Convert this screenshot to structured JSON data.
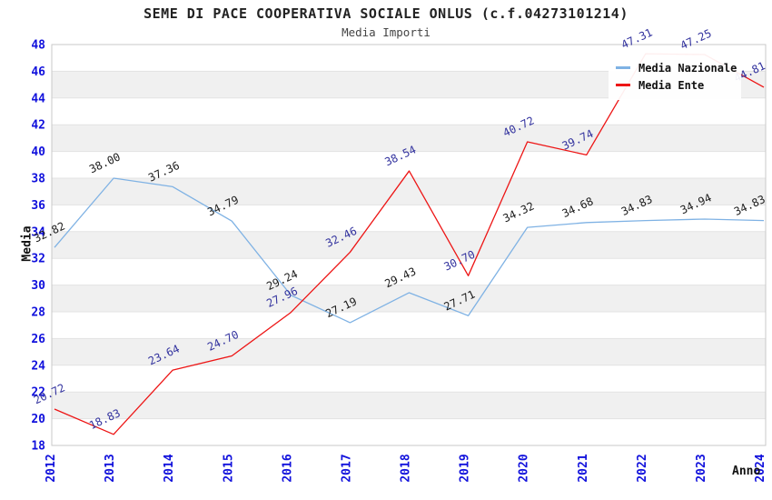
{
  "header": {
    "title": "SEME DI PACE COOPERATIVA SOCIALE ONLUS (c.f.04273101214)",
    "subtitle": "Media Importi"
  },
  "chart_data": {
    "type": "line",
    "title": "SEME DI PACE COOPERATIVA SOCIALE ONLUS (c.f.04273101214)",
    "subtitle": "Media Importi",
    "xlabel": "Anno",
    "ylabel": "Media",
    "categories": [
      "2012",
      "2013",
      "2014",
      "2015",
      "2016",
      "2017",
      "2018",
      "2019",
      "2020",
      "2021",
      "2022",
      "2023",
      "2024"
    ],
    "series": [
      {
        "name": "Media Nazionale",
        "color": "#7fb2e4",
        "label_color": "#1c1c1c",
        "values": [
          32.82,
          38.0,
          37.36,
          34.79,
          29.24,
          27.19,
          29.43,
          27.71,
          34.32,
          34.68,
          34.83,
          34.94,
          34.83
        ]
      },
      {
        "name": "Media Ente",
        "color": "#ed1515",
        "label_color": "#32329e",
        "values": [
          20.72,
          18.83,
          23.64,
          24.7,
          27.96,
          32.46,
          38.54,
          30.7,
          40.72,
          39.74,
          47.31,
          47.25,
          44.81
        ]
      }
    ],
    "ylim": [
      18,
      48
    ],
    "yticks": [
      18,
      20,
      22,
      24,
      26,
      28,
      30,
      32,
      34,
      36,
      38,
      40,
      42,
      44,
      46,
      48
    ],
    "value_decimals": 2,
    "grid": "horizontal-alternating-bands",
    "legend_position": "top-right"
  },
  "style": {
    "tick_label_color": "#1010dc",
    "band_color": "#f0f0f0",
    "band_edge_color": "#e3e3e3",
    "plot_border_color": "#c9c9c9",
    "background": "#ffffff"
  }
}
